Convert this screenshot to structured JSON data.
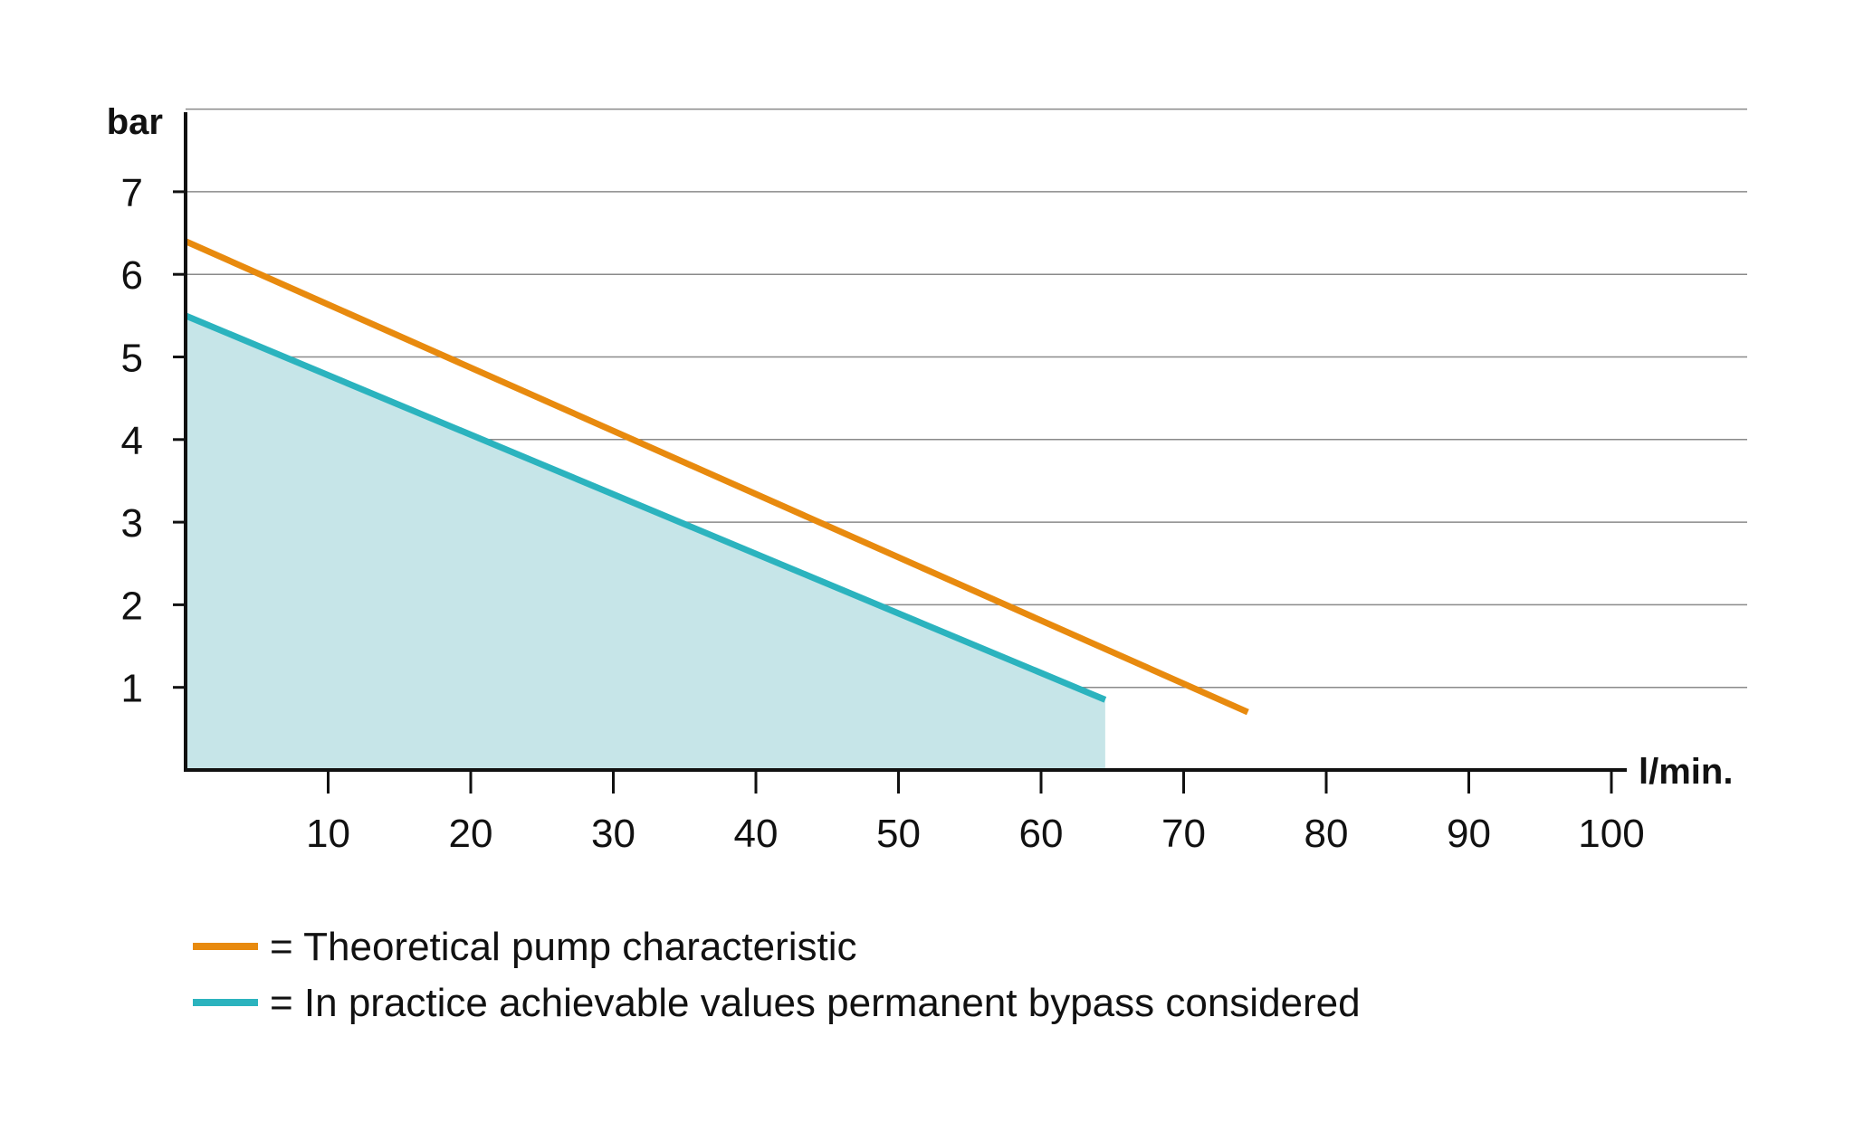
{
  "chart_data": {
    "type": "line",
    "xlabel": "l/min.",
    "ylabel": "bar",
    "xlim": [
      0,
      100
    ],
    "ylim": [
      0,
      8
    ],
    "x_ticks": [
      "10",
      "20",
      "30",
      "40",
      "50",
      "60",
      "70",
      "80",
      "90",
      "100"
    ],
    "y_ticks": [
      "1",
      "2",
      "3",
      "4",
      "5",
      "6",
      "7"
    ],
    "grid": "horizontal",
    "legend_position": "bottom",
    "series": [
      {
        "name": "= Theoretical pump characteristic",
        "color": "#E88A0E",
        "fill": false,
        "points": [
          [
            0,
            6.4
          ],
          [
            74.5,
            0.7
          ]
        ]
      },
      {
        "name": "= In practice achievable values permanent bypass considered",
        "color": "#2BB3BE",
        "fill": true,
        "fill_color": "#C6E5E8",
        "points": [
          [
            0,
            5.5
          ],
          [
            64.5,
            0.85
          ]
        ]
      }
    ]
  }
}
